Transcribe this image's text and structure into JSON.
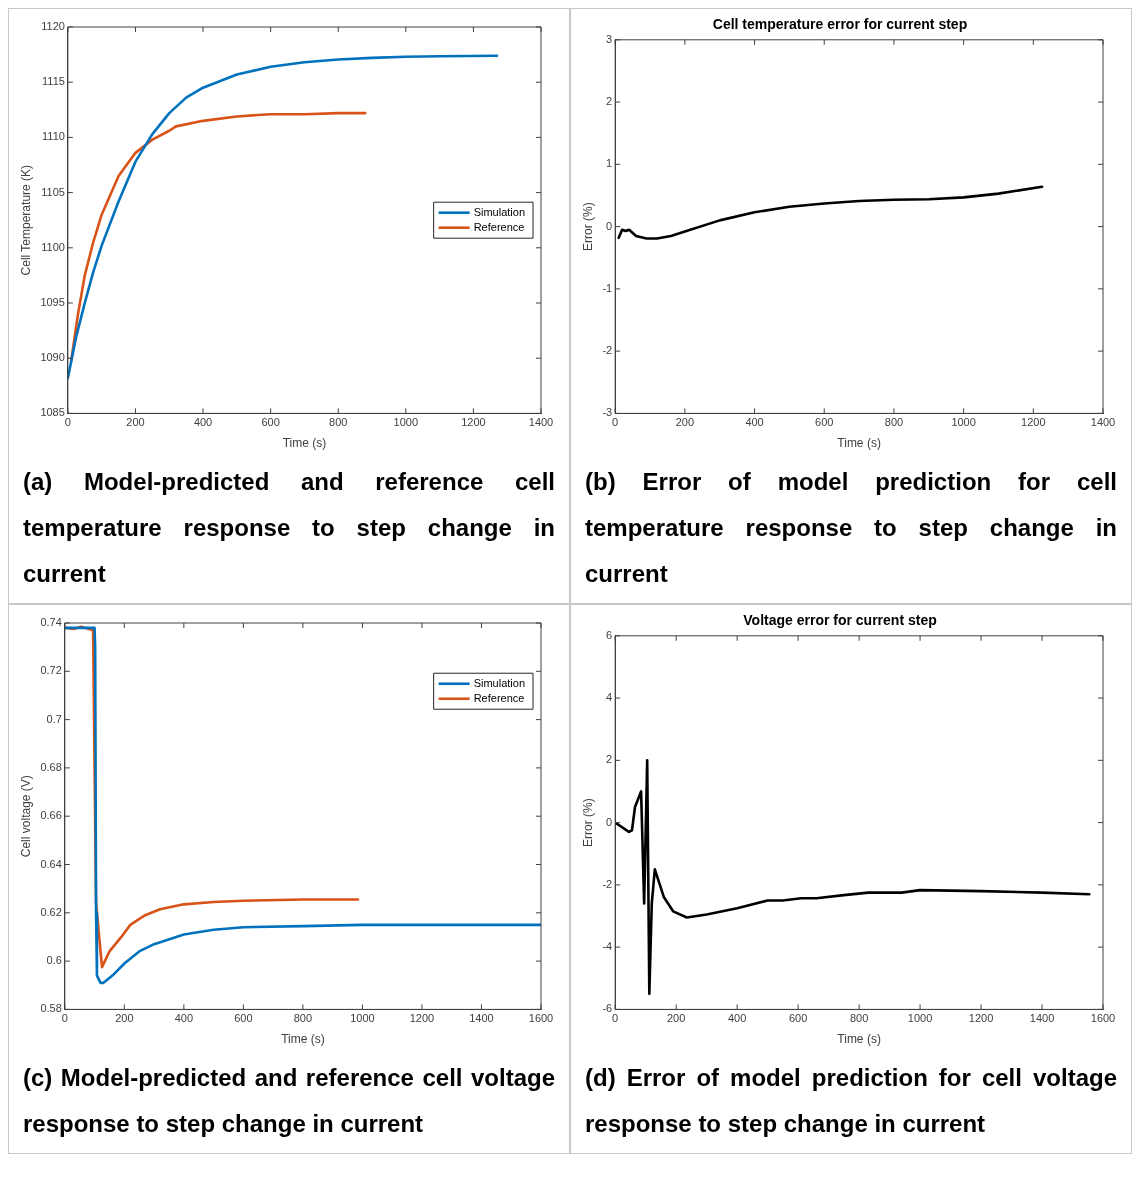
{
  "chart_data": [
    {
      "type": "line",
      "xlabel": "Time (s)",
      "ylabel": "Cell Temperature (K)",
      "xlim": [
        0,
        1400
      ],
      "xticks": [
        0,
        200,
        400,
        600,
        800,
        1000,
        1200,
        1400
      ],
      "ylim": [
        1085,
        1120
      ],
      "yticks": [
        1085,
        1090,
        1095,
        1100,
        1105,
        1110,
        1115,
        1120
      ],
      "legend": "right",
      "annotations": [
        "(a) Model-predicted and reference cell temperature response to step change in current"
      ],
      "series": [
        {
          "name": "Simulation",
          "color": "#0072bd",
          "x": [
            0,
            25,
            50,
            75,
            100,
            150,
            200,
            250,
            300,
            350,
            400,
            500,
            600,
            700,
            800,
            900,
            1000,
            1100,
            1270
          ],
          "values": [
            1088.2,
            1092,
            1095,
            1097.8,
            1100.2,
            1104.2,
            1107.8,
            1110.3,
            1112.2,
            1113.6,
            1114.5,
            1115.7,
            1116.4,
            1116.8,
            1117.05,
            1117.2,
            1117.3,
            1117.35,
            1117.4
          ]
        },
        {
          "name": "Reference",
          "color": "#d95319",
          "x": [
            10,
            30,
            50,
            75,
            100,
            150,
            200,
            250,
            300,
            320,
            400,
            500,
            600,
            700,
            800,
            880
          ],
          "values": [
            1089.8,
            1094,
            1097.5,
            1100.5,
            1103,
            1106.5,
            1108.6,
            1109.8,
            1110.6,
            1111,
            1111.5,
            1111.9,
            1112.1,
            1112.1,
            1112.2,
            1112.2
          ]
        }
      ]
    },
    {
      "type": "line",
      "title": "Cell temperature error for current step",
      "xlabel": "Time (s)",
      "ylabel": "Error (%)",
      "xlim": [
        0,
        1400
      ],
      "xticks": [
        0,
        200,
        400,
        600,
        800,
        1000,
        1200,
        1400
      ],
      "ylim": [
        -3,
        3
      ],
      "yticks": [
        -3,
        -2,
        -1,
        0,
        1,
        2,
        3
      ],
      "annotations": [
        "(b) Error of model prediction for cell temperature response to step change in current"
      ],
      "series": [
        {
          "color": "#000000",
          "x": [
            10,
            20,
            30,
            40,
            60,
            90,
            120,
            160,
            200,
            300,
            400,
            500,
            600,
            700,
            800,
            900,
            1000,
            1100,
            1225
          ],
          "values": [
            -0.18,
            -0.05,
            -0.07,
            -0.05,
            -0.15,
            -0.19,
            -0.19,
            -0.15,
            -0.08,
            0.1,
            0.23,
            0.32,
            0.37,
            0.41,
            0.43,
            0.44,
            0.47,
            0.53,
            0.64
          ]
        }
      ]
    },
    {
      "type": "line",
      "xlabel": "Time (s)",
      "ylabel": "Cell voltage (V)",
      "xlim": [
        0,
        1600
      ],
      "xticks": [
        0,
        200,
        400,
        600,
        800,
        1000,
        1200,
        1400,
        1600
      ],
      "ylim": [
        0.58,
        0.74
      ],
      "yticks": [
        0.58,
        0.6,
        0.62,
        0.64,
        0.66,
        0.68,
        0.7,
        0.72,
        0.74
      ],
      "legend": "top right",
      "annotations": [
        "(c) Model-predicted and reference cell voltage response to step change in current"
      ],
      "series": [
        {
          "name": "Simulation",
          "color": "#0072bd",
          "x": [
            0,
            100,
            102,
            105,
            108,
            120,
            130,
            160,
            200,
            250,
            300,
            400,
            500,
            600,
            800,
            1000,
            1600
          ],
          "values": [
            0.738,
            0.738,
            0.73,
            0.62,
            0.594,
            0.591,
            0.591,
            0.594,
            0.599,
            0.604,
            0.607,
            0.611,
            0.613,
            0.614,
            0.6145,
            0.615,
            0.615
          ]
        },
        {
          "name": "Reference",
          "color": "#d95319",
          "x": [
            0,
            30,
            55,
            95,
            105,
            125,
            150,
            190,
            220,
            270,
            320,
            400,
            500,
            600,
            800,
            985
          ],
          "values": [
            0.738,
            0.7375,
            0.7385,
            0.737,
            0.624,
            0.5975,
            0.604,
            0.61,
            0.615,
            0.619,
            0.6215,
            0.6235,
            0.6245,
            0.625,
            0.6255,
            0.6255
          ]
        }
      ]
    },
    {
      "type": "line",
      "title": "Voltage error for current step",
      "xlabel": "Time (s)",
      "ylabel": "Error (%)",
      "xlim": [
        0,
        1600
      ],
      "xticks": [
        0,
        200,
        400,
        600,
        800,
        1000,
        1200,
        1400,
        1600
      ],
      "ylim": [
        -6,
        6
      ],
      "yticks": [
        -6,
        -4,
        -2,
        0,
        2,
        4,
        6
      ],
      "annotations": [
        "(d) Error of model prediction for cell voltage response to step change in current"
      ],
      "series": [
        {
          "color": "#000000",
          "x": [
            0,
            45,
            55,
            65,
            85,
            95,
            105,
            112,
            120,
            130,
            160,
            190,
            235,
            300,
            400,
            500,
            550,
            610,
            660,
            750,
            830,
            940,
            1000,
            1200,
            1400,
            1555
          ],
          "values": [
            0,
            -0.3,
            -0.25,
            0.5,
            1,
            -2.6,
            2,
            -5.5,
            -2.6,
            -1.5,
            -2.4,
            -2.85,
            -3.05,
            -2.95,
            -2.75,
            -2.5,
            -2.5,
            -2.43,
            -2.43,
            -2.33,
            -2.25,
            -2.25,
            -2.17,
            -2.2,
            -2.25,
            -2.3
          ]
        }
      ]
    }
  ]
}
